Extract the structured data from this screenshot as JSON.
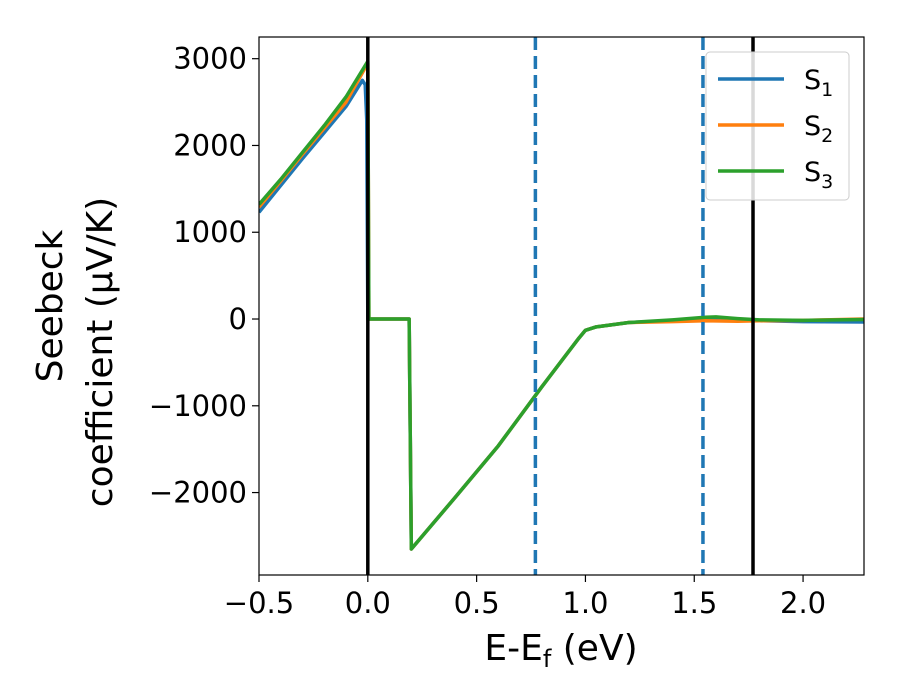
{
  "chart_data": {
    "type": "line",
    "xlabel": "E-E",
    "xlabel_sub": "f",
    "xlabel_unit": " (eV)",
    "ylabel_line1": "Seebeck",
    "ylabel_line2": "coefficient  (μV/K)",
    "xlim": [
      -0.5,
      2.28
    ],
    "ylim": [
      -2950,
      3250
    ],
    "x_ticks": [
      -0.5,
      0.0,
      0.5,
      1.0,
      1.5,
      2.0
    ],
    "x_tick_labels": [
      "−0.5",
      "0.0",
      "0.5",
      "1.0",
      "1.5",
      "2.0"
    ],
    "y_ticks": [
      -2000,
      -1000,
      0,
      1000,
      2000,
      3000
    ],
    "y_tick_labels": [
      "−2000",
      "−1000",
      "0",
      "1000",
      "2000",
      "3000"
    ],
    "grid": false,
    "legend_position": "top-right",
    "series": [
      {
        "name": "S",
        "sub": "1",
        "color": "#1f77b4",
        "points": [
          [
            -0.5,
            1230
          ],
          [
            -0.4,
            1540
          ],
          [
            -0.3,
            1850
          ],
          [
            -0.2,
            2150
          ],
          [
            -0.1,
            2450
          ],
          [
            -0.05,
            2650
          ],
          [
            -0.025,
            2750
          ],
          [
            -0.012,
            2700
          ],
          [
            -0.005,
            2300
          ],
          [
            0.0,
            0
          ],
          [
            0.19,
            0
          ],
          [
            0.2,
            -2650
          ],
          [
            0.4,
            -2060
          ],
          [
            0.6,
            -1460
          ],
          [
            0.8,
            -780
          ],
          [
            0.9,
            -450
          ],
          [
            0.97,
            -220
          ],
          [
            1.0,
            -130
          ],
          [
            1.05,
            -90
          ],
          [
            1.2,
            -40
          ],
          [
            1.4,
            -20
          ],
          [
            1.55,
            5
          ],
          [
            1.6,
            10
          ],
          [
            1.7,
            0
          ],
          [
            1.8,
            -20
          ],
          [
            2.0,
            -30
          ],
          [
            2.28,
            -35
          ]
        ]
      },
      {
        "name": "S",
        "sub": "2",
        "color": "#ff7f0e",
        "points": [
          [
            -0.5,
            1290
          ],
          [
            -0.4,
            1590
          ],
          [
            -0.3,
            1900
          ],
          [
            -0.2,
            2200
          ],
          [
            -0.1,
            2500
          ],
          [
            0.0,
            2950
          ],
          [
            0.005,
            0
          ],
          [
            0.19,
            0
          ],
          [
            0.2,
            -2650
          ],
          [
            0.4,
            -2060
          ],
          [
            0.6,
            -1460
          ],
          [
            0.8,
            -780
          ],
          [
            0.9,
            -450
          ],
          [
            0.97,
            -220
          ],
          [
            1.0,
            -130
          ],
          [
            1.05,
            -90
          ],
          [
            1.2,
            -40
          ],
          [
            1.4,
            -30
          ],
          [
            1.55,
            -20
          ],
          [
            1.7,
            -25
          ],
          [
            1.8,
            -20
          ],
          [
            2.0,
            -15
          ],
          [
            2.28,
            0
          ]
        ]
      },
      {
        "name": "S",
        "sub": "3",
        "color": "#2ca02c",
        "points": [
          [
            -0.5,
            1320
          ],
          [
            -0.4,
            1610
          ],
          [
            -0.3,
            1920
          ],
          [
            -0.2,
            2230
          ],
          [
            -0.1,
            2560
          ],
          [
            0.0,
            2970
          ],
          [
            0.005,
            0
          ],
          [
            0.19,
            0
          ],
          [
            0.2,
            -2650
          ],
          [
            0.4,
            -2060
          ],
          [
            0.6,
            -1460
          ],
          [
            0.8,
            -780
          ],
          [
            0.9,
            -450
          ],
          [
            0.97,
            -220
          ],
          [
            1.0,
            -130
          ],
          [
            1.05,
            -90
          ],
          [
            1.2,
            -40
          ],
          [
            1.4,
            -10
          ],
          [
            1.55,
            20
          ],
          [
            1.6,
            25
          ],
          [
            1.7,
            5
          ],
          [
            1.8,
            -10
          ],
          [
            2.0,
            -15
          ],
          [
            2.28,
            -5
          ]
        ]
      }
    ],
    "vertical_lines": [
      {
        "x": 0.0,
        "style": "solid",
        "color": "#000000"
      },
      {
        "x": 0.77,
        "style": "dashed",
        "color": "#1f77b4"
      },
      {
        "x": 1.54,
        "style": "dashed",
        "color": "#1f77b4"
      },
      {
        "x": 1.77,
        "style": "solid",
        "color": "#000000"
      }
    ]
  }
}
